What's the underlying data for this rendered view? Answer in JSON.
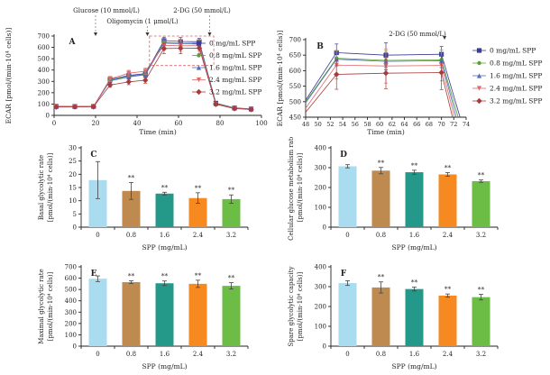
{
  "colors": {
    "bars": [
      "#aadcef",
      "#bf8a50",
      "#24998a",
      "#f6891f",
      "#6cbd45"
    ],
    "series": [
      "#3c3c96",
      "#5ba033",
      "#4e6fbe",
      "#e06a6a",
      "#a93a3a"
    ],
    "error_bar": "#444444",
    "axis": "#222222",
    "zoom_box": "#e06464",
    "annotation_arrow": "#333333"
  },
  "chart_data": [
    {
      "id": "A",
      "type": "line",
      "panel_label": "A",
      "xlabel": "Time (min)",
      "ylabel": "ECAR [pmol/(min·10⁴ cells)]",
      "xlim": [
        0,
        100
      ],
      "xticks": [
        0,
        20,
        40,
        60,
        80,
        100
      ],
      "ylim": [
        0,
        700
      ],
      "yticks": [
        0,
        100,
        200,
        300,
        400,
        500,
        600,
        700
      ],
      "x": [
        1,
        10,
        19,
        27,
        36,
        44,
        53,
        61,
        70,
        78,
        87,
        95
      ],
      "series": [
        {
          "name": "0 mg/mL SPP",
          "color": "#3c3c96",
          "marker": "square",
          "values": [
            80,
            79,
            80,
            318,
            352,
            368,
            660,
            652,
            650,
            108,
            66,
            57
          ],
          "errors": [
            6,
            6,
            6,
            20,
            24,
            25,
            30,
            35,
            30,
            10,
            7,
            6
          ]
        },
        {
          "name": "0.8 mg/mL SPP",
          "color": "#5ba033",
          "marker": "circle",
          "values": [
            78,
            78,
            79,
            310,
            345,
            362,
            643,
            638,
            636,
            104,
            64,
            55
          ],
          "errors": [
            6,
            6,
            6,
            20,
            24,
            25,
            28,
            30,
            28,
            10,
            7,
            6
          ]
        },
        {
          "name": "1.6 mg/mL SPP",
          "color": "#4e6fbe",
          "marker": "triangle-up",
          "values": [
            77,
            77,
            78,
            305,
            340,
            358,
            638,
            632,
            630,
            102,
            63,
            54
          ],
          "errors": [
            6,
            6,
            6,
            18,
            22,
            24,
            26,
            30,
            26,
            9,
            7,
            6
          ]
        },
        {
          "name": "2.4 mg/mL SPP",
          "color": "#e06a6a",
          "marker": "triangle-down",
          "values": [
            76,
            76,
            77,
            322,
            372,
            390,
            618,
            614,
            616,
            100,
            62,
            53
          ],
          "errors": [
            6,
            6,
            6,
            22,
            26,
            28,
            40,
            50,
            45,
            10,
            7,
            6
          ]
        },
        {
          "name": "3.2 mg/mL SPP",
          "color": "#a93a3a",
          "marker": "diamond",
          "values": [
            74,
            75,
            76,
            268,
            296,
            310,
            590,
            592,
            594,
            98,
            60,
            52
          ],
          "errors": [
            6,
            6,
            6,
            20,
            25,
            26,
            45,
            48,
            50,
            10,
            7,
            6
          ]
        }
      ],
      "annotations": [
        {
          "text": "Glucose (10 mmol/L)",
          "arrow_x": 20,
          "row": 0
        },
        {
          "text": "Oligomycin (1 μmol/L)",
          "arrow_x": 45,
          "row": 1
        },
        {
          "text": "2-DG (50 mmol/L)",
          "arrow_x": 75,
          "row": 0
        }
      ],
      "zoom_box": {
        "x0": 46,
        "x1": 77,
        "y0": 440,
        "y1": 700
      }
    },
    {
      "id": "B",
      "type": "line",
      "panel_label": "B",
      "xlabel": "Time (min)",
      "ylabel": "ECAR [pmol/(min·10⁴ cells)]",
      "xlim": [
        48,
        74
      ],
      "xticks": [
        48,
        50,
        52,
        54,
        56,
        58,
        60,
        62,
        64,
        66,
        68,
        70,
        72,
        74
      ],
      "ylim": [
        450,
        700
      ],
      "yticks": [
        450,
        500,
        550,
        600,
        650,
        700
      ],
      "marker_indices": [
        1,
        2,
        3
      ],
      "series": [
        {
          "name": "0 mg/mL SPP",
          "color": "#3c3c96",
          "marker": "square",
          "x": [
            48,
            53,
            61,
            70,
            73.0
          ],
          "values": [
            505,
            658,
            650,
            653,
            450
          ],
          "errors": [
            0,
            28,
            40,
            25,
            0
          ]
        },
        {
          "name": "0.8 mg/mL SPP",
          "color": "#5ba033",
          "marker": "circle",
          "x": [
            48,
            53,
            61,
            70,
            72.7
          ],
          "values": [
            500,
            640,
            633,
            635,
            450
          ],
          "errors": [
            0,
            25,
            30,
            25,
            0
          ]
        },
        {
          "name": "1.6 mg/mL SPP",
          "color": "#4e6fbe",
          "marker": "triangle-up",
          "x": [
            48,
            53,
            61,
            70,
            72.4
          ],
          "values": [
            496,
            637,
            630,
            632,
            450
          ],
          "errors": [
            0,
            20,
            28,
            22,
            0
          ]
        },
        {
          "name": "2.4 mg/mL SPP",
          "color": "#e06a6a",
          "marker": "triangle-down",
          "x": [
            48,
            53,
            61,
            70,
            72.1
          ],
          "values": [
            479,
            618,
            615,
            617,
            450
          ],
          "errors": [
            0,
            45,
            55,
            50,
            0
          ]
        },
        {
          "name": "3.2 mg/mL SPP",
          "color": "#a93a3a",
          "marker": "diamond",
          "x": [
            48,
            53,
            61,
            70,
            71.8
          ],
          "values": [
            466,
            588,
            592,
            594,
            450
          ],
          "errors": [
            0,
            48,
            50,
            55,
            0
          ]
        }
      ],
      "annotations": [
        {
          "text": "2-DG (50 mmol/L)",
          "arrow_x": 70.5,
          "row": 0
        }
      ]
    },
    {
      "id": "C",
      "type": "bar",
      "panel_label": "C",
      "ylabel_lines": [
        "Basal glycolytic rate",
        "[pmol/(min·10⁴ cells)]"
      ],
      "xlabel": "SPP (mg/mL)",
      "categories": [
        "0",
        "0.8",
        "1.6",
        "2.4",
        "3.2"
      ],
      "values": [
        17.8,
        13.7,
        12.7,
        11.0,
        10.6
      ],
      "errors": [
        7.0,
        3.2,
        0.5,
        2.0,
        1.6
      ],
      "sig": [
        "",
        "**",
        "**",
        "**",
        "**"
      ],
      "ylim": [
        0,
        30
      ],
      "yticks": [
        0,
        5,
        10,
        15,
        20,
        25,
        30
      ]
    },
    {
      "id": "D",
      "type": "bar",
      "panel_label": "D",
      "ylabel_lines": [
        "Cellular glucose metabolism rate",
        "[pmol/(min·10⁴ cells)]"
      ],
      "xlabel": "SPP (mg/mL)",
      "categories": [
        "0",
        "0.8",
        "1.6",
        "2.4",
        "3.2"
      ],
      "values": [
        307,
        285,
        277,
        266,
        232
      ],
      "errors": [
        8,
        16,
        10,
        9,
        6
      ],
      "sig": [
        "",
        "**",
        "**",
        "**",
        "**"
      ],
      "ylim": [
        0,
        400
      ],
      "yticks": [
        0,
        100,
        200,
        300,
        400
      ]
    },
    {
      "id": "E",
      "type": "bar",
      "panel_label": "E",
      "ylabel_lines": [
        "Maximal glycolytic rate",
        "[pmol/(min·10⁴ cells)]"
      ],
      "xlabel": "SPP (mg/mL)",
      "categories": [
        "0",
        "0.8",
        "1.6",
        "2.4",
        "3.2"
      ],
      "values": [
        595,
        565,
        555,
        550,
        532
      ],
      "errors": [
        25,
        12,
        20,
        32,
        28
      ],
      "sig": [
        "",
        "**",
        "**",
        "**",
        "**"
      ],
      "ylim": [
        0,
        700
      ],
      "yticks": [
        0,
        100,
        200,
        300,
        400,
        500,
        600,
        700
      ]
    },
    {
      "id": "F",
      "type": "bar",
      "panel_label": "F",
      "ylabel_lines": [
        "Spare glycolytic capacity",
        "[pmol/(min·10⁴ cells)]"
      ],
      "xlabel": "SPP (mg/mL)",
      "categories": [
        "0",
        "0.8",
        "1.6",
        "2.4",
        "3.2"
      ],
      "values": [
        318,
        296,
        288,
        255,
        247
      ],
      "errors": [
        12,
        28,
        10,
        8,
        14
      ],
      "sig": [
        "",
        "**",
        "**",
        "**",
        "**"
      ],
      "ylim": [
        0,
        400
      ],
      "yticks": [
        0,
        100,
        200,
        300,
        400
      ]
    }
  ]
}
